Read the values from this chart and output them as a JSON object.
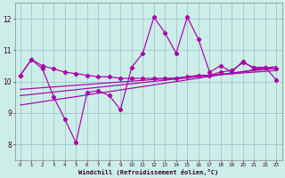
{
  "xlabel": "Windchill (Refroidissement éolien,°C)",
  "background_color": "#cceee8",
  "grid_color": "#a0c8c4",
  "line_color": "#aa00aa",
  "xlim": [
    -0.5,
    23.5
  ],
  "ylim": [
    7.5,
    12.5
  ],
  "yticks": [
    8,
    9,
    10,
    11,
    12
  ],
  "xticks": [
    0,
    1,
    2,
    3,
    4,
    5,
    6,
    7,
    8,
    9,
    10,
    11,
    12,
    13,
    14,
    15,
    16,
    17,
    18,
    19,
    20,
    21,
    22,
    23
  ],
  "hours": [
    0,
    1,
    2,
    3,
    4,
    5,
    6,
    7,
    8,
    9,
    10,
    11,
    12,
    13,
    14,
    15,
    16,
    17,
    18,
    19,
    20,
    21,
    22,
    23
  ],
  "main_line": [
    10.2,
    10.7,
    10.4,
    9.5,
    8.8,
    8.05,
    9.65,
    9.7,
    9.55,
    9.1,
    10.45,
    10.9,
    12.05,
    11.55,
    10.9,
    12.05,
    11.35,
    10.3,
    10.5,
    10.3,
    10.65,
    10.4,
    10.45,
    10.05
  ],
  "upper_line": [
    10.2,
    10.7,
    10.5,
    10.4,
    10.3,
    10.25,
    10.2,
    10.15,
    10.15,
    10.1,
    10.1,
    10.1,
    10.1,
    10.1,
    10.1,
    10.15,
    10.2,
    10.2,
    10.3,
    10.35,
    10.6,
    10.45,
    10.45,
    10.4
  ],
  "reg_line2_x": [
    0,
    23
  ],
  "reg_line2_y": [
    9.55,
    10.45
  ],
  "reg_line3_x": [
    0,
    23
  ],
  "reg_line3_y": [
    9.75,
    10.38
  ]
}
